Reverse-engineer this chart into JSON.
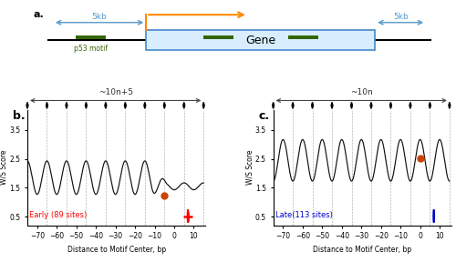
{
  "title_a": "a.",
  "title_b": "b.",
  "title_c": "c.",
  "label_early": "Early (89 sites)",
  "label_late": "Late(113 sites)",
  "label_10n5": "~10n+5",
  "label_10n": "~10n",
  "xlabel": "Distance to Motif Center, bp",
  "ylabel": "W/S Score",
  "xlim": [
    -75,
    16
  ],
  "ylim_b": [
    0.2,
    4.2
  ],
  "ylim_c": [
    0.2,
    4.2
  ],
  "xticks": [
    -70,
    -60,
    -50,
    -40,
    -30,
    -20,
    -10,
    0,
    10
  ],
  "yticks_b": [
    0.5,
    1.5,
    2.5,
    3.5
  ],
  "yticks_c": [
    0.5,
    1.5,
    2.5,
    3.5
  ],
  "color_early": "#FF0000",
  "color_late": "#0000CC",
  "color_line": "#111111",
  "color_diamond": "#111111",
  "color_orange_dot": "#CC4400",
  "gene_box_color": "#D8EEFF",
  "gene_border_color": "#4488CC",
  "arrow_color": "#FF8800",
  "motif_color": "#336600",
  "bracket_color": "#5599CC",
  "diamond_positions": [
    -75,
    -65,
    -55,
    -45,
    -35,
    -25,
    -15,
    -5,
    5,
    15
  ],
  "period": 10,
  "phase_b": 5,
  "phase_c": 0,
  "amp_b_far": 0.58,
  "amp_b_near": 0.12,
  "base_b_far": 1.85,
  "base_b_near": 1.55,
  "transition_b": -12,
  "amp_c": 0.72,
  "base_c": 2.45,
  "orange_dot_x_b": -5,
  "orange_dot_y_b": 1.22,
  "orange_dot_x_c": 0,
  "orange_dot_y_c": 2.52
}
